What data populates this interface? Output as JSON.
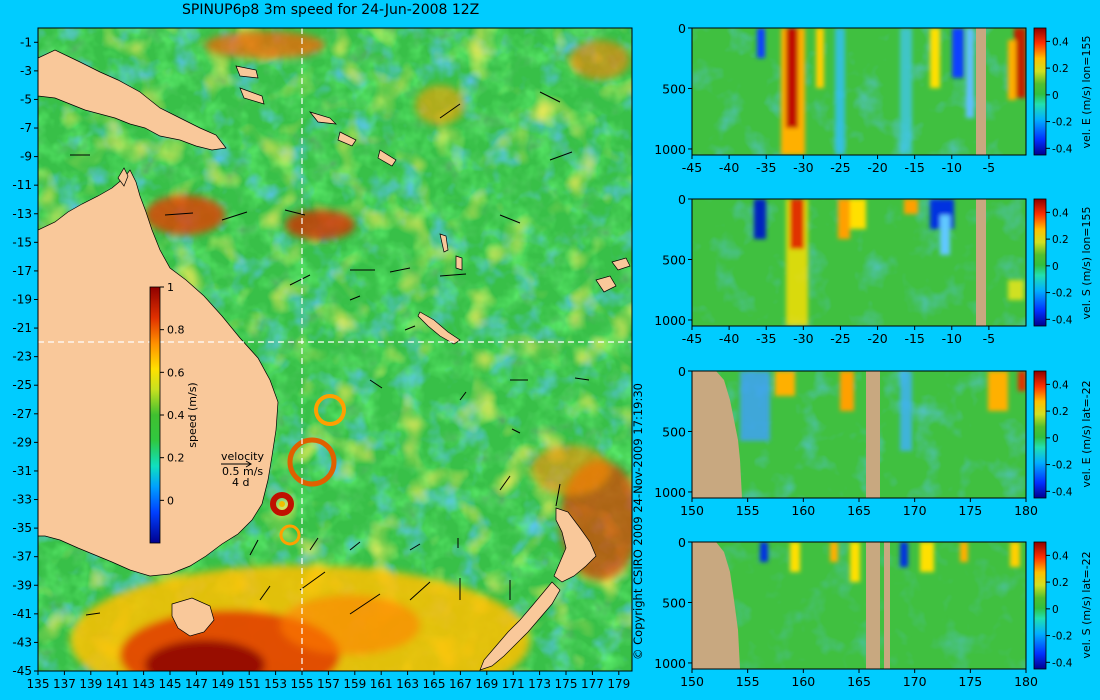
{
  "title": "SPINUP6p8 3m speed for 24-Jun-2008 12Z",
  "copyright": "© Copyright CSIRO 2009   24-Nov-2009 17:19:30",
  "colors": {
    "page_background": "#00ccff",
    "land": "#f9c89a",
    "seabed": "#c8a880",
    "grid_dashes": "#ffffff"
  },
  "chart_data": [
    {
      "type": "heatmap",
      "name": "map",
      "x_ticks": [
        "135",
        "137",
        "139",
        "141",
        "143",
        "145",
        "147",
        "149",
        "151",
        "153",
        "155",
        "157",
        "159",
        "161",
        "163",
        "165",
        "167",
        "169",
        "171",
        "173",
        "175",
        "177",
        "179"
      ],
      "y_ticks": [
        "-1",
        "-3",
        "-5",
        "-7",
        "-9",
        "-11",
        "-13",
        "-15",
        "-17",
        "-19",
        "-21",
        "-23",
        "-25",
        "-27",
        "-29",
        "-31",
        "-33",
        "-35",
        "-37",
        "-39",
        "-41",
        "-43",
        "-45"
      ],
      "xlim": [
        135,
        180
      ],
      "ylim": [
        -45,
        0
      ],
      "marker_lines": {
        "lon": 155,
        "lat": -22
      },
      "colorbar": {
        "label": "speed (m/s)",
        "ticks": [
          "1",
          "0.8",
          "0.6",
          "0.4",
          "0.2",
          "0"
        ],
        "range": [
          -0.2,
          1
        ]
      },
      "velocity_key": {
        "label": "velocity",
        "scale": "0.5 m/s",
        "duration": "4 d"
      }
    },
    {
      "type": "heatmap",
      "name": "section-1",
      "x_ticks": [
        "-45",
        "-40",
        "-35",
        "-30",
        "-25",
        "-20",
        "-15",
        "-10",
        "-5"
      ],
      "y_ticks": [
        "0",
        "500",
        "1000"
      ],
      "xlim": [
        -45,
        0
      ],
      "ylim": [
        1050,
        0
      ],
      "colorbar": {
        "label": "vel. E (m/s) lon=155",
        "ticks": [
          "0.4",
          "0.2",
          "0",
          "-0.2",
          "-0.4"
        ],
        "range": [
          -0.45,
          0.5
        ]
      }
    },
    {
      "type": "heatmap",
      "name": "section-2",
      "x_ticks": [
        "-45",
        "-40",
        "-35",
        "-30",
        "-25",
        "-20",
        "-15",
        "-10",
        "-5"
      ],
      "y_ticks": [
        "0",
        "500",
        "1000"
      ],
      "xlim": [
        -45,
        0
      ],
      "ylim": [
        1050,
        0
      ],
      "colorbar": {
        "label": "vel. S (m/s) lon=155",
        "ticks": [
          "0.4",
          "0.2",
          "0",
          "-0.2",
          "-0.4"
        ],
        "range": [
          -0.45,
          0.5
        ]
      }
    },
    {
      "type": "heatmap",
      "name": "section-3",
      "x_ticks": [
        "150",
        "155",
        "160",
        "165",
        "170",
        "175",
        "180"
      ],
      "y_ticks": [
        "0",
        "500",
        "1000"
      ],
      "xlim": [
        150,
        180
      ],
      "ylim": [
        1050,
        0
      ],
      "colorbar": {
        "label": "vel. E (m/s) lat=-22",
        "ticks": [
          "0.4",
          "0.2",
          "0",
          "-0.2",
          "-0.4"
        ],
        "range": [
          -0.45,
          0.5
        ]
      }
    },
    {
      "type": "heatmap",
      "name": "section-4",
      "x_ticks": [
        "150",
        "155",
        "160",
        "165",
        "170",
        "175",
        "180"
      ],
      "y_ticks": [
        "0",
        "500",
        "1000"
      ],
      "xlim": [
        150,
        180
      ],
      "ylim": [
        1050,
        0
      ],
      "colorbar": {
        "label": "vel. S (m/s) lat=-22",
        "ticks": [
          "0.4",
          "0.2",
          "0",
          "-0.2",
          "-0.4"
        ],
        "range": [
          -0.45,
          0.5
        ]
      }
    }
  ]
}
